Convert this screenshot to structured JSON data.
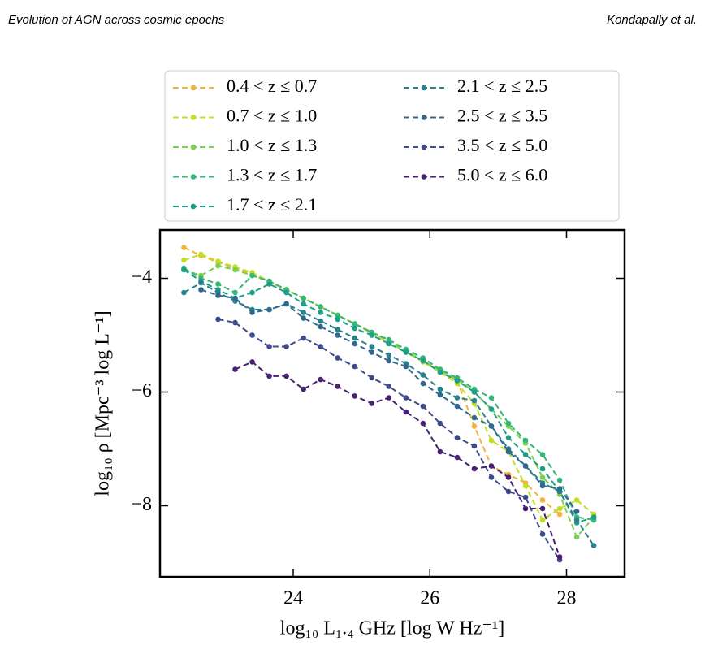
{
  "header": {
    "title": "Evolution of AGN across cosmic epochs",
    "author": "Kondapally et al."
  },
  "chart_data": {
    "type": "line",
    "xlabel": "log₁₀ L₁.₄ GHz [log W Hz⁻¹]",
    "ylabel": "log₁₀ ρ [Mpc⁻³ log L⁻¹]",
    "x": [
      22.4,
      22.65,
      22.9,
      23.15,
      23.4,
      23.65,
      23.9,
      24.15,
      24.4,
      24.65,
      24.9,
      25.15,
      25.4,
      25.65,
      25.9,
      26.15,
      26.4,
      26.65,
      26.9,
      27.15,
      27.4,
      27.65,
      27.9,
      28.15,
      28.4
    ],
    "xlim": [
      22.05,
      28.85
    ],
    "xticks": [
      24,
      26,
      28
    ],
    "ylim": [
      -9.25,
      -3.15
    ],
    "yticks": [
      {
        "value": -4,
        "label": "−4"
      },
      {
        "value": -6,
        "label": "−6"
      },
      {
        "value": -8,
        "label": "−8"
      }
    ],
    "legend": "top-outside",
    "series": [
      {
        "name": "0.4 < z ≤ 0.7",
        "color": "#f2b33a",
        "values": [
          -3.46,
          -3.6,
          -3.72,
          -3.82,
          -3.93,
          -4.07,
          -4.2,
          -4.35,
          -4.5,
          -4.65,
          -4.8,
          -4.95,
          -5.12,
          -5.28,
          -5.45,
          -5.62,
          -5.8,
          -6.6,
          -7.3,
          -7.45,
          -7.6,
          -7.9,
          -8.15,
          null,
          null
        ]
      },
      {
        "name": "0.7 < z ≤ 1.0",
        "color": "#c2df23",
        "values": [
          -3.68,
          -3.58,
          -3.7,
          -3.8,
          -3.9,
          -4.05,
          -4.2,
          -4.35,
          -4.5,
          -4.65,
          -4.8,
          -4.97,
          -5.13,
          -5.3,
          -5.47,
          -5.65,
          -5.85,
          -6.2,
          -6.85,
          -7.05,
          -7.65,
          -8.25,
          -8.05,
          -7.9,
          -8.15
        ]
      },
      {
        "name": "1.0 < z ≤ 1.3",
        "color": "#7ad151",
        "values": [
          -3.85,
          -3.95,
          -3.78,
          -3.85,
          -3.95,
          -4.05,
          -4.2,
          -4.35,
          -4.5,
          -4.65,
          -4.8,
          -4.95,
          -5.1,
          -5.28,
          -5.45,
          -5.62,
          -5.78,
          -6.0,
          -6.3,
          -6.6,
          -6.9,
          -7.5,
          -7.8,
          -8.55,
          -8.2
        ]
      },
      {
        "name": "1.3 < z ≤ 1.7",
        "color": "#35b779",
        "values": [
          -3.82,
          -4.0,
          -4.1,
          -4.25,
          -3.95,
          -4.05,
          -4.2,
          -4.35,
          -4.5,
          -4.65,
          -4.8,
          -4.95,
          -5.08,
          -5.25,
          -5.4,
          -5.6,
          -5.75,
          -5.95,
          -6.1,
          -6.55,
          -6.85,
          -7.1,
          -7.55,
          -8.2,
          -8.25
        ]
      },
      {
        "name": "1.7 < z ≤ 2.1",
        "color": "#1f9e89",
        "values": [
          -3.85,
          -4.05,
          -4.2,
          -4.35,
          -4.25,
          -4.1,
          -4.25,
          -4.45,
          -4.6,
          -4.72,
          -4.88,
          -5.0,
          -5.15,
          -5.3,
          -5.45,
          -5.65,
          -5.8,
          -6.0,
          -6.3,
          -6.8,
          -7.1,
          -7.35,
          -7.75,
          -8.3,
          -8.2
        ]
      },
      {
        "name": "2.1 < z ≤ 2.5",
        "color": "#26828e",
        "values": [
          -4.25,
          -4.08,
          -4.25,
          -4.4,
          -4.55,
          -4.55,
          -4.45,
          -4.6,
          -4.75,
          -4.9,
          -5.05,
          -5.2,
          -5.35,
          -5.5,
          -5.7,
          -5.95,
          -6.1,
          -6.15,
          -6.6,
          -7.0,
          -7.3,
          -7.6,
          -7.75,
          -8.25,
          -8.7
        ]
      },
      {
        "name": "2.5 < z ≤ 3.5",
        "color": "#31688e",
        "values": [
          null,
          -4.2,
          -4.3,
          -4.35,
          -4.6,
          -4.55,
          -4.45,
          -4.7,
          -4.85,
          -5.0,
          -5.15,
          -5.3,
          -5.45,
          -5.55,
          -5.85,
          -6.05,
          -6.25,
          -6.45,
          -6.6,
          -7.05,
          -7.3,
          -7.65,
          -7.7,
          -8.1,
          null
        ]
      },
      {
        "name": "3.5 < z ≤ 5.0",
        "color": "#3e4a89",
        "values": [
          null,
          null,
          -4.72,
          -4.78,
          -5.0,
          -5.2,
          -5.2,
          -5.05,
          -5.2,
          -5.4,
          -5.55,
          -5.75,
          -5.9,
          -6.1,
          -6.25,
          -6.55,
          -6.8,
          -6.95,
          -7.5,
          -7.75,
          -7.85,
          -8.5,
          -8.95,
          null,
          null
        ]
      },
      {
        "name": "5.0 < z ≤ 6.0",
        "color": "#482173",
        "values": [
          null,
          null,
          null,
          -5.6,
          -5.47,
          -5.72,
          -5.72,
          -5.95,
          -5.78,
          -5.9,
          -6.07,
          -6.2,
          -6.1,
          -6.35,
          -6.55,
          -7.05,
          -7.15,
          -7.35,
          -7.3,
          -7.5,
          -8.05,
          -8.05,
          -8.9,
          null,
          null
        ]
      }
    ]
  }
}
